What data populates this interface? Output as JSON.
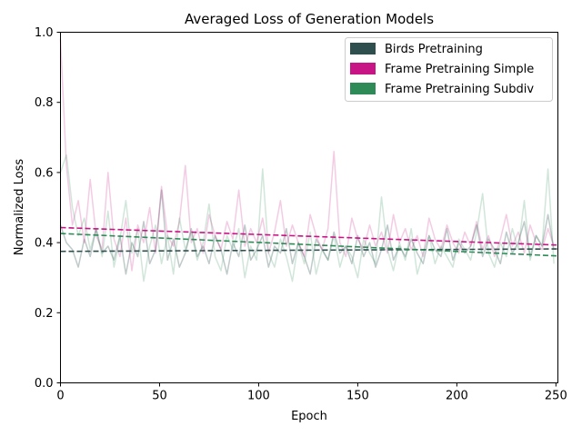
{
  "chart_data": {
    "type": "line",
    "title": "Averaged Loss of Generation Models",
    "xlabel": "Epoch",
    "ylabel": "Normalized Loss",
    "xlim": [
      0,
      251
    ],
    "ylim": [
      0.0,
      1.0
    ],
    "x_ticks": [
      0,
      50,
      100,
      150,
      200,
      250
    ],
    "x_tick_labels": [
      "0",
      "50",
      "100",
      "150",
      "200",
      "250"
    ],
    "y_ticks": [
      0.0,
      0.2,
      0.4,
      0.6,
      0.8,
      1.0
    ],
    "y_tick_labels": [
      "0.0",
      "0.2",
      "0.4",
      "0.6",
      "0.8",
      "1.0"
    ],
    "grid": false,
    "legend_position": "top-right",
    "series": [
      {
        "name": "Birds Pretraining",
        "color": "#2f4f4f",
        "raw_opacity": 0.3,
        "trend_start": 0.375,
        "trend_end": 0.382,
        "x": [
          0,
          3,
          6,
          9,
          12,
          15,
          18,
          21,
          24,
          27,
          30,
          33,
          36,
          39,
          42,
          45,
          48,
          51,
          54,
          57,
          60,
          63,
          66,
          69,
          72,
          75,
          78,
          81,
          84,
          87,
          90,
          93,
          96,
          99,
          102,
          105,
          108,
          111,
          114,
          117,
          120,
          123,
          126,
          129,
          132,
          135,
          138,
          141,
          144,
          147,
          150,
          153,
          156,
          159,
          162,
          165,
          168,
          171,
          174,
          177,
          180,
          183,
          186,
          189,
          192,
          195,
          198,
          201,
          204,
          207,
          210,
          213,
          216,
          219,
          222,
          225,
          228,
          231,
          234,
          237,
          240,
          243,
          246,
          249
        ],
        "values": [
          0.45,
          0.4,
          0.38,
          0.33,
          0.41,
          0.36,
          0.44,
          0.37,
          0.39,
          0.35,
          0.42,
          0.31,
          0.4,
          0.36,
          0.46,
          0.34,
          0.38,
          0.55,
          0.35,
          0.41,
          0.33,
          0.37,
          0.44,
          0.36,
          0.39,
          0.34,
          0.42,
          0.38,
          0.31,
          0.4,
          0.36,
          0.45,
          0.35,
          0.38,
          0.42,
          0.33,
          0.39,
          0.37,
          0.44,
          0.34,
          0.4,
          0.36,
          0.31,
          0.41,
          0.38,
          0.35,
          0.43,
          0.37,
          0.39,
          0.34,
          0.42,
          0.36,
          0.4,
          0.33,
          0.38,
          0.45,
          0.35,
          0.39,
          0.36,
          0.41,
          0.37,
          0.34,
          0.42,
          0.38,
          0.36,
          0.44,
          0.35,
          0.4,
          0.37,
          0.39,
          0.45,
          0.36,
          0.41,
          0.38,
          0.34,
          0.43,
          0.37,
          0.4,
          0.46,
          0.36,
          0.42,
          0.39,
          0.48,
          0.38
        ]
      },
      {
        "name": "Frame Pretraining Simple",
        "color": "#c71585",
        "raw_opacity": 0.22,
        "trend_start": 0.443,
        "trend_end": 0.393,
        "x": [
          0,
          3,
          6,
          9,
          12,
          15,
          18,
          21,
          24,
          27,
          30,
          33,
          36,
          39,
          42,
          45,
          48,
          51,
          54,
          57,
          60,
          63,
          66,
          69,
          72,
          75,
          78,
          81,
          84,
          87,
          90,
          93,
          96,
          99,
          102,
          105,
          108,
          111,
          114,
          117,
          120,
          123,
          126,
          129,
          132,
          135,
          138,
          141,
          144,
          147,
          150,
          153,
          156,
          159,
          162,
          165,
          168,
          171,
          174,
          177,
          180,
          183,
          186,
          189,
          192,
          195,
          198,
          201,
          204,
          207,
          210,
          213,
          216,
          219,
          222,
          225,
          228,
          231,
          234,
          237,
          240,
          243,
          246,
          249
        ],
        "values": [
          0.98,
          0.62,
          0.45,
          0.52,
          0.4,
          0.58,
          0.42,
          0.38,
          0.6,
          0.41,
          0.36,
          0.47,
          0.32,
          0.45,
          0.4,
          0.5,
          0.37,
          0.56,
          0.42,
          0.39,
          0.46,
          0.62,
          0.4,
          0.44,
          0.37,
          0.48,
          0.42,
          0.38,
          0.46,
          0.41,
          0.55,
          0.39,
          0.44,
          0.4,
          0.47,
          0.37,
          0.43,
          0.52,
          0.39,
          0.45,
          0.4,
          0.36,
          0.48,
          0.42,
          0.38,
          0.44,
          0.66,
          0.4,
          0.36,
          0.47,
          0.41,
          0.38,
          0.45,
          0.39,
          0.43,
          0.37,
          0.48,
          0.4,
          0.44,
          0.38,
          0.42,
          0.36,
          0.47,
          0.41,
          0.38,
          0.45,
          0.4,
          0.37,
          0.43,
          0.39,
          0.46,
          0.38,
          0.42,
          0.36,
          0.41,
          0.48,
          0.39,
          0.43,
          0.37,
          0.45,
          0.4,
          0.38,
          0.44,
          0.39
        ]
      },
      {
        "name": "Frame Pretraining Subdiv",
        "color": "#2e8b57",
        "raw_opacity": 0.22,
        "trend_start": 0.426,
        "trend_end": 0.362,
        "x": [
          0,
          3,
          6,
          9,
          12,
          15,
          18,
          21,
          24,
          27,
          30,
          33,
          36,
          39,
          42,
          45,
          48,
          51,
          54,
          57,
          60,
          63,
          66,
          69,
          72,
          75,
          78,
          81,
          84,
          87,
          90,
          93,
          96,
          99,
          102,
          105,
          108,
          111,
          114,
          117,
          120,
          123,
          126,
          129,
          132,
          135,
          138,
          141,
          144,
          147,
          150,
          153,
          156,
          159,
          162,
          165,
          168,
          171,
          174,
          177,
          180,
          183,
          186,
          189,
          192,
          195,
          198,
          201,
          204,
          207,
          210,
          213,
          216,
          219,
          222,
          225,
          228,
          231,
          234,
          237,
          240,
          243,
          246,
          249
        ],
        "values": [
          0.6,
          0.65,
          0.5,
          0.42,
          0.47,
          0.38,
          0.44,
          0.36,
          0.49,
          0.33,
          0.41,
          0.52,
          0.37,
          0.44,
          0.29,
          0.39,
          0.45,
          0.34,
          0.42,
          0.31,
          0.47,
          0.38,
          0.43,
          0.35,
          0.4,
          0.51,
          0.36,
          0.32,
          0.42,
          0.38,
          0.44,
          0.3,
          0.39,
          0.35,
          0.61,
          0.37,
          0.33,
          0.41,
          0.36,
          0.29,
          0.4,
          0.34,
          0.43,
          0.31,
          0.38,
          0.35,
          0.42,
          0.33,
          0.39,
          0.36,
          0.3,
          0.41,
          0.37,
          0.34,
          0.53,
          0.38,
          0.32,
          0.4,
          0.35,
          0.44,
          0.31,
          0.37,
          0.42,
          0.34,
          0.39,
          0.36,
          0.33,
          0.41,
          0.38,
          0.35,
          0.43,
          0.54,
          0.37,
          0.33,
          0.4,
          0.36,
          0.44,
          0.38,
          0.52,
          0.35,
          0.42,
          0.39,
          0.61,
          0.34
        ]
      }
    ]
  }
}
